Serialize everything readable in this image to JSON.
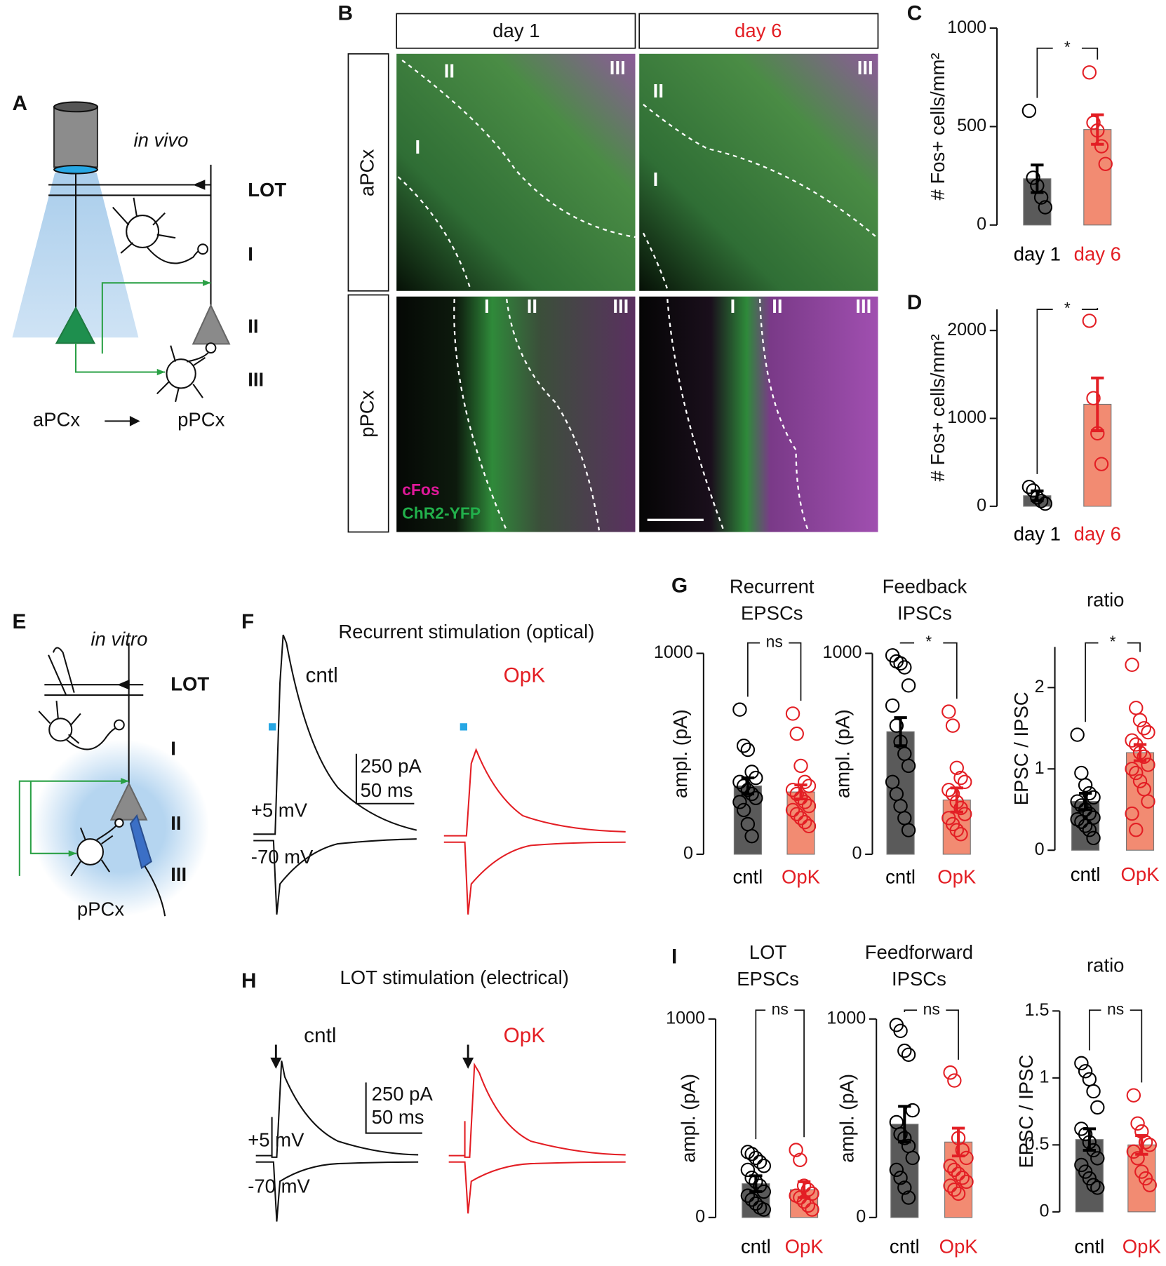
{
  "panel_labels": [
    "A",
    "B",
    "C",
    "D",
    "E",
    "F",
    "G",
    "H",
    "I"
  ],
  "panel_a": {
    "mode": "in vivo",
    "layers": [
      "LOT",
      "I",
      "II",
      "III"
    ],
    "regions": [
      "aPCx",
      "pPCx"
    ]
  },
  "panel_b": {
    "columns": [
      "day 1",
      "day 6"
    ],
    "rows": [
      "aPCx",
      "pPCx"
    ],
    "layer_labels": [
      "I",
      "II",
      "III"
    ],
    "legend": [
      "cFos",
      "ChR2-YFP"
    ]
  },
  "panel_e": {
    "mode": "in vitro",
    "layers": [
      "LOT",
      "I",
      "II",
      "III"
    ],
    "region": "pPCx"
  },
  "panel_f": {
    "title": "Recurrent stimulation (optical)",
    "conditions": [
      "cntl",
      "OpK"
    ],
    "scale": [
      "250 pA",
      "50 ms"
    ],
    "holding": [
      "+5 mV",
      "-70 mV"
    ]
  },
  "panel_h": {
    "title": "LOT stimulation (electrical)",
    "conditions": [
      "cntl",
      "OpK"
    ],
    "scale": [
      "250 pA",
      "50 ms"
    ],
    "holding": [
      "+5 mV",
      "-70 mV"
    ]
  },
  "chart_data": [
    {
      "type": "bar",
      "ylabel": "# Fos+ cells/mm²",
      "categories": [
        "day 1",
        "day 6"
      ],
      "colors": [
        "#5a5a5a",
        "#f28b72"
      ],
      "marker_colors": [
        "#000000",
        "#e31e24"
      ],
      "values": [
        235,
        485
      ],
      "errors": [
        70,
        75
      ],
      "points": [
        [
          580,
          240,
          200,
          140,
          90
        ],
        [
          775,
          520,
          480,
          400,
          310
        ]
      ],
      "ylim": [
        0,
        1000
      ],
      "yticks": [
        0,
        500,
        1000
      ],
      "significance": "*"
    },
    {
      "type": "bar",
      "ylabel": "# Fos+ cells/mm²",
      "categories": [
        "day 1",
        "day 6"
      ],
      "colors": [
        "#5a5a5a",
        "#f28b72"
      ],
      "marker_colors": [
        "#000000",
        "#e31e24"
      ],
      "values": [
        120,
        1160
      ],
      "errors": [
        55,
        300
      ],
      "points": [
        [
          220,
          180,
          100,
          60,
          30
        ],
        [
          2110,
          1230,
          830,
          480
        ]
      ],
      "ylim": [
        0,
        2240
      ],
      "yticks": [
        0,
        1000,
        2000
      ],
      "significance": "*"
    },
    {
      "type": "bar",
      "title": "Recurrent EPSCs",
      "ylabel": "ampl. (pA)",
      "categories": [
        "cntl",
        "OpK"
      ],
      "colors": [
        "#5a5a5a",
        "#f28b72"
      ],
      "marker_colors": [
        "#000000",
        "#e31e24"
      ],
      "values": [
        340,
        310
      ],
      "errors": [
        40,
        35
      ],
      "points": [
        [
          720,
          540,
          520,
          410,
          380,
          360,
          340,
          320,
          300,
          280,
          260,
          220,
          150,
          90
        ],
        [
          700,
          600,
          440,
          360,
          340,
          320,
          300,
          280,
          260,
          240,
          220,
          200,
          180,
          160,
          140
        ]
      ],
      "ylim": [
        0,
        1000
      ],
      "yticks": [
        0,
        1000
      ],
      "significance": "ns"
    },
    {
      "type": "bar",
      "title": "Feedback IPSCs",
      "ylabel": "ampl. (pA)",
      "categories": [
        "cntl",
        "OpK"
      ],
      "colors": [
        "#5a5a5a",
        "#f28b72"
      ],
      "marker_colors": [
        "#000000",
        "#e31e24"
      ],
      "values": [
        610,
        270
      ],
      "errors": [
        70,
        60
      ],
      "points": [
        [
          990,
          960,
          950,
          930,
          840,
          740,
          640,
          560,
          500,
          440,
          360,
          300,
          240,
          180,
          120
        ],
        [
          710,
          640,
          430,
          380,
          360,
          320,
          300,
          260,
          230,
          200,
          180,
          150,
          120,
          100
        ]
      ],
      "ylim": [
        0,
        1000
      ],
      "yticks": [
        0,
        1000
      ],
      "significance": "*"
    },
    {
      "type": "bar",
      "title": "ratio",
      "ylabel": "EPSC / IPSC",
      "categories": [
        "cntl",
        "OpK"
      ],
      "colors": [
        "#5a5a5a",
        "#f28b72"
      ],
      "marker_colors": [
        "#000000",
        "#e31e24"
      ],
      "values": [
        0.6,
        1.2
      ],
      "errors": [
        0.1,
        0.1
      ],
      "points": [
        [
          1.42,
          0.95,
          0.8,
          0.7,
          0.65,
          0.6,
          0.55,
          0.5,
          0.45,
          0.4,
          0.38,
          0.35,
          0.3,
          0.25,
          0.15
        ],
        [
          2.28,
          1.75,
          1.6,
          1.5,
          1.45,
          1.35,
          1.3,
          1.2,
          1.15,
          1.05,
          1.0,
          0.95,
          0.85,
          0.75,
          0.6,
          0.45,
          0.25
        ]
      ],
      "ylim": [
        0,
        2.5
      ],
      "yticks": [
        0,
        1,
        2
      ],
      "significance": "*"
    },
    {
      "type": "bar",
      "title": "LOT EPSCs",
      "ylabel": "ampl. (pA)",
      "categories": [
        "cntl",
        "OpK"
      ],
      "colors": [
        "#5a5a5a",
        "#f28b72"
      ],
      "marker_colors": [
        "#000000",
        "#e31e24"
      ],
      "values": [
        170,
        140
      ],
      "errors": [
        40,
        40
      ],
      "points": [
        [
          330,
          320,
          300,
          280,
          260,
          240,
          200,
          180,
          160,
          130,
          110,
          90,
          70,
          50,
          40
        ],
        [
          340,
          290,
          160,
          140,
          120,
          110,
          100,
          80,
          60,
          40
        ]
      ],
      "ylim": [
        0,
        1000
      ],
      "yticks": [
        0,
        1000
      ],
      "significance": "ns"
    },
    {
      "type": "bar",
      "title": "Feedforward IPSCs",
      "ylabel": "ampl. (pA)",
      "categories": [
        "cntl",
        "OpK"
      ],
      "colors": [
        "#5a5a5a",
        "#f28b72"
      ],
      "marker_colors": [
        "#000000",
        "#e31e24"
      ],
      "values": [
        470,
        380
      ],
      "errors": [
        90,
        70
      ],
      "points": [
        [
          970,
          940,
          840,
          820,
          540,
          480,
          420,
          400,
          360,
          300,
          240,
          200,
          150,
          100
        ],
        [
          730,
          690,
          400,
          340,
          300,
          260,
          240,
          220,
          200,
          180,
          160,
          140,
          120
        ]
      ],
      "ylim": [
        0,
        1000
      ],
      "yticks": [
        0,
        1000
      ],
      "significance": "ns"
    },
    {
      "type": "bar",
      "title": "ratio",
      "ylabel": "EPSC / IPSC",
      "categories": [
        "cntl",
        "OpK"
      ],
      "colors": [
        "#5a5a5a",
        "#f28b72"
      ],
      "marker_colors": [
        "#000000",
        "#e31e24"
      ],
      "values": [
        0.54,
        0.5
      ],
      "errors": [
        0.08,
        0.07
      ],
      "points": [
        [
          1.11,
          1.05,
          0.99,
          0.9,
          0.78,
          0.62,
          0.58,
          0.52,
          0.46,
          0.4,
          0.35,
          0.3,
          0.25,
          0.2,
          0.18
        ],
        [
          0.87,
          0.66,
          0.6,
          0.52,
          0.5,
          0.45,
          0.4,
          0.3,
          0.25,
          0.2
        ]
      ],
      "ylim": [
        0,
        1.5
      ],
      "yticks": [
        0,
        0.5,
        1,
        1.5
      ],
      "significance": "ns"
    }
  ]
}
